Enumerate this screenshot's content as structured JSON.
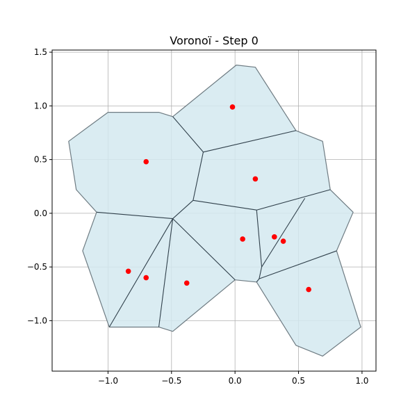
{
  "chart_data": {
    "type": "scatter",
    "title": "Voronoï - Step 0",
    "xlabel": "",
    "ylabel": "",
    "xlim": [
      -1.44,
      1.11
    ],
    "ylim": [
      -1.47,
      1.52
    ],
    "xticks": [
      -1.0,
      -0.5,
      0.0,
      0.5,
      1.0
    ],
    "xtick_labels": [
      "−1.0",
      "−0.5",
      "0.0",
      "0.5",
      "1.0"
    ],
    "yticks": [
      -1.0,
      -0.5,
      0.0,
      0.5,
      1.0,
      1.5
    ],
    "ytick_labels": [
      "−1.0",
      "−0.5",
      "0.0",
      "0.5",
      "1.0",
      "1.5"
    ],
    "grid": true,
    "colors": {
      "cell_fill": "#d4e9f0",
      "cell_outline": "#6e7b82",
      "edge": "#2f3f4a",
      "point": "#ff0000",
      "grid": "#b0b0b0"
    },
    "points": [
      {
        "x": -0.02,
        "y": 0.99
      },
      {
        "x": -0.7,
        "y": 0.48
      },
      {
        "x": 0.16,
        "y": 0.32
      },
      {
        "x": 0.06,
        "y": -0.24
      },
      {
        "x": 0.31,
        "y": -0.22
      },
      {
        "x": 0.38,
        "y": -0.26
      },
      {
        "x": -0.84,
        "y": -0.54
      },
      {
        "x": -0.7,
        "y": -0.6
      },
      {
        "x": -0.38,
        "y": -0.65
      },
      {
        "x": 0.58,
        "y": -0.71
      }
    ],
    "region_outline": [
      [
        0.01,
        1.38
      ],
      [
        0.16,
        1.36
      ],
      [
        0.48,
        0.77
      ],
      [
        0.69,
        0.67
      ],
      [
        0.75,
        0.22
      ],
      [
        0.93,
        0.01
      ],
      [
        0.8,
        -0.35
      ],
      [
        0.99,
        -1.06
      ],
      [
        0.69,
        -1.33
      ],
      [
        0.48,
        -1.23
      ],
      [
        0.17,
        -0.64
      ],
      [
        0.0,
        -0.62
      ],
      [
        -0.49,
        -1.1
      ],
      [
        -0.6,
        -1.06
      ],
      [
        -0.99,
        -1.06
      ],
      [
        -1.2,
        -0.35
      ],
      [
        -1.09,
        0.01
      ],
      [
        -1.25,
        0.22
      ],
      [
        -1.31,
        0.67
      ],
      [
        -1.0,
        0.94
      ],
      [
        -0.6,
        0.94
      ],
      [
        -0.49,
        0.9
      ]
    ],
    "edges": [
      [
        [
          -0.49,
          0.9
        ],
        [
          -0.25,
          0.57
        ]
      ],
      [
        [
          -0.25,
          0.57
        ],
        [
          0.48,
          0.77
        ]
      ],
      [
        [
          -0.25,
          0.57
        ],
        [
          -0.33,
          0.12
        ]
      ],
      [
        [
          -0.33,
          0.12
        ],
        [
          0.17,
          0.03
        ]
      ],
      [
        [
          0.17,
          0.03
        ],
        [
          0.75,
          0.22
        ]
      ],
      [
        [
          -0.33,
          0.12
        ],
        [
          -0.49,
          -0.05
        ]
      ],
      [
        [
          -1.09,
          0.01
        ],
        [
          -0.49,
          -0.05
        ]
      ],
      [
        [
          -0.49,
          -0.05
        ],
        [
          -0.99,
          -1.06
        ]
      ],
      [
        [
          -0.49,
          -0.05
        ],
        [
          -0.6,
          -1.06
        ]
      ],
      [
        [
          -0.49,
          -0.05
        ],
        [
          0.0,
          -0.62
        ]
      ],
      [
        [
          0.17,
          0.03
        ],
        [
          0.21,
          -0.5
        ]
      ],
      [
        [
          0.21,
          -0.5
        ],
        [
          0.19,
          -0.61
        ]
      ],
      [
        [
          0.19,
          -0.61
        ],
        [
          0.17,
          -0.64
        ]
      ],
      [
        [
          0.21,
          -0.5
        ],
        [
          0.55,
          0.14
        ]
      ],
      [
        [
          0.19,
          -0.61
        ],
        [
          0.8,
          -0.35
        ]
      ]
    ]
  }
}
